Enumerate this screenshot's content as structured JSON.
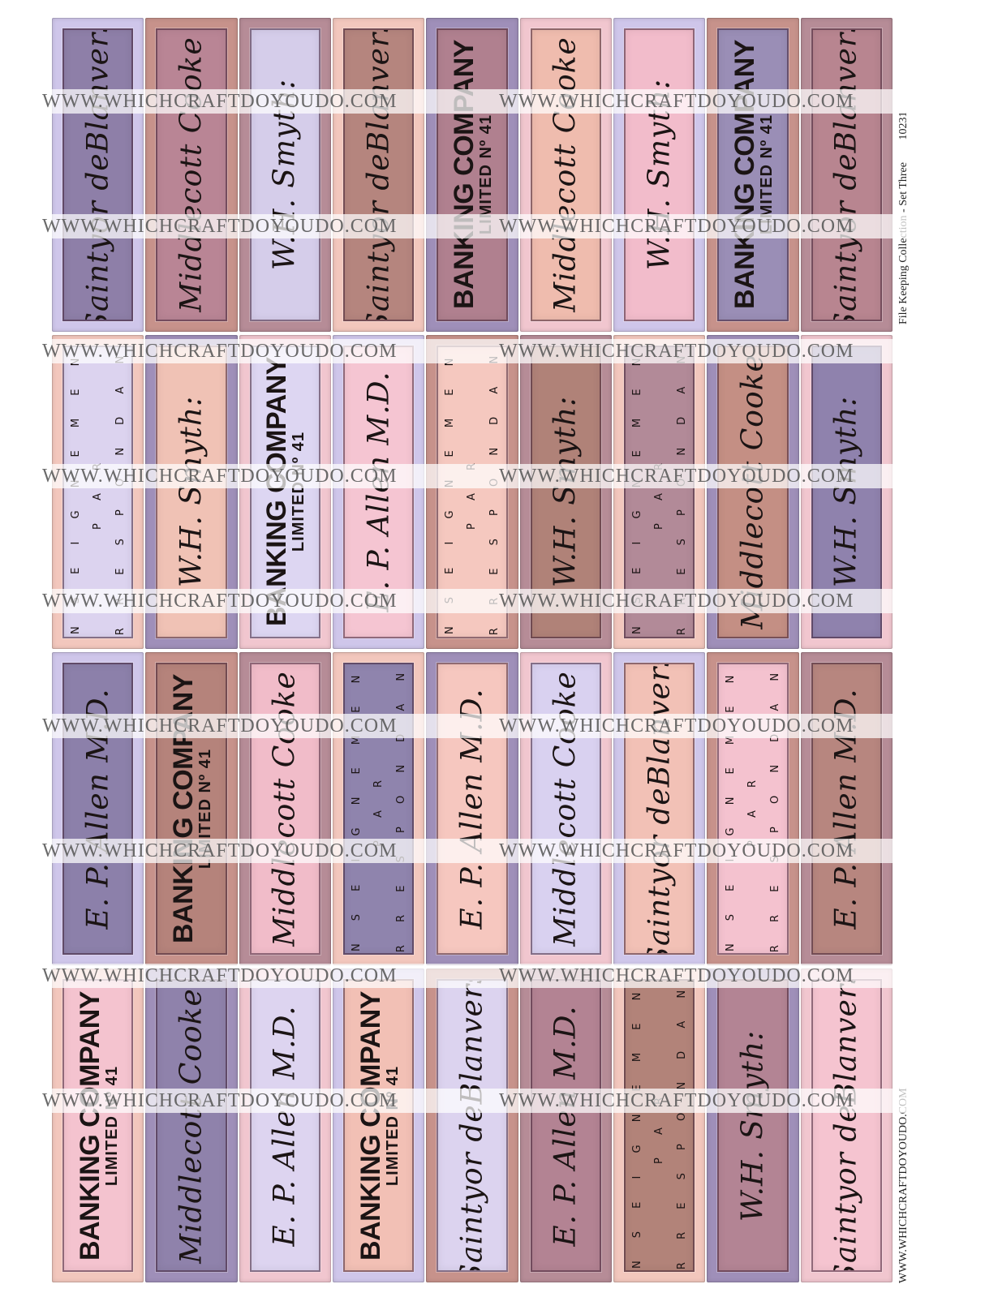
{
  "labels": {
    "banking": {
      "line1": "BANKING COMPANY",
      "line2": "LIMITED Nº 41"
    },
    "enseignement": {
      "line1": "E N S E I G N E M E N T",
      "line2": "P A R",
      "line3": "C O R R E S P O N D A N C E"
    },
    "sig_allen": "E. P. Allen M.D.",
    "sig_middlecott": "Middlecott Cooke",
    "sig_wm": "W.H. Smyth:",
    "sig_saintyer": "Saintyor deBlanvers"
  },
  "grid": {
    "rows": [
      [
        {
          "type": "sig_saintyer",
          "color": "#8e7fa8"
        },
        {
          "type": "sig_middlecott",
          "color": "#b98595"
        },
        {
          "type": "sig_wm",
          "color": "#d5cdea"
        },
        {
          "type": "sig_saintyer",
          "color": "#b5857e"
        },
        {
          "type": "banking",
          "color": "#b0808f"
        },
        {
          "type": "sig_middlecott",
          "color": "#efbcae"
        },
        {
          "type": "sig_wm",
          "color": "#f2bccb"
        },
        {
          "type": "banking",
          "color": "#9a8eb6"
        },
        {
          "type": "sig_saintyer",
          "color": "#b88590"
        }
      ],
      [
        {
          "type": "enseignement",
          "color": "#dcd3ef"
        },
        {
          "type": "sig_wm",
          "color": "#f0c2b5"
        },
        {
          "type": "banking",
          "color": "#ddd6f2"
        },
        {
          "type": "sig_allen",
          "color": "#f5c5d2"
        },
        {
          "type": "enseignement",
          "color": "#f5c8bf"
        },
        {
          "type": "sig_wm",
          "color": "#b08278"
        },
        {
          "type": "enseignement",
          "color": "#b28a98"
        },
        {
          "type": "sig_middlecott",
          "color": "#c48f84"
        },
        {
          "type": "sig_wm",
          "color": "#8f82ad"
        }
      ],
      [
        {
          "type": "sig_allen",
          "color": "#8c80aa"
        },
        {
          "type": "banking",
          "color": "#b5837b"
        },
        {
          "type": "sig_middlecott",
          "color": "#f1bcc9"
        },
        {
          "type": "enseignement",
          "color": "#8f84ad"
        },
        {
          "type": "sig_allen",
          "color": "#f6c7bf"
        },
        {
          "type": "sig_middlecott",
          "color": "#d9d1f0"
        },
        {
          "type": "sig_saintyer",
          "color": "#f2c1b6"
        },
        {
          "type": "enseignement",
          "color": "#f4c2cf"
        },
        {
          "type": "sig_allen",
          "color": "#b7867f"
        }
      ],
      [
        {
          "type": "banking",
          "color": "#f4c3cf"
        },
        {
          "type": "sig_middlecott",
          "color": "#8f82ab"
        },
        {
          "type": "sig_allen",
          "color": "#ddd4f0"
        },
        {
          "type": "banking",
          "color": "#f2c0b5"
        },
        {
          "type": "sig_saintyer",
          "color": "#dcd3ef"
        },
        {
          "type": "sig_allen",
          "color": "#b38393"
        },
        {
          "type": "enseignement",
          "color": "#b28379"
        },
        {
          "type": "sig_wm",
          "color": "#b38494"
        },
        {
          "type": "sig_saintyer",
          "color": "#f5c4d0"
        }
      ]
    ]
  },
  "frame_colors": [
    "#cfc6ea",
    "#f1c6cf",
    "#9f8fb9",
    "#f2c7bd",
    "#b68c97",
    "#c7928b"
  ],
  "watermark": "WWW.WHICHCRAFTDOYOUDO.COM",
  "caption": "File Keeping Collection - Set Three",
  "item_number": "10231",
  "footer_url": "WWW.WHICHCRAFTDOYOUDO.COM"
}
